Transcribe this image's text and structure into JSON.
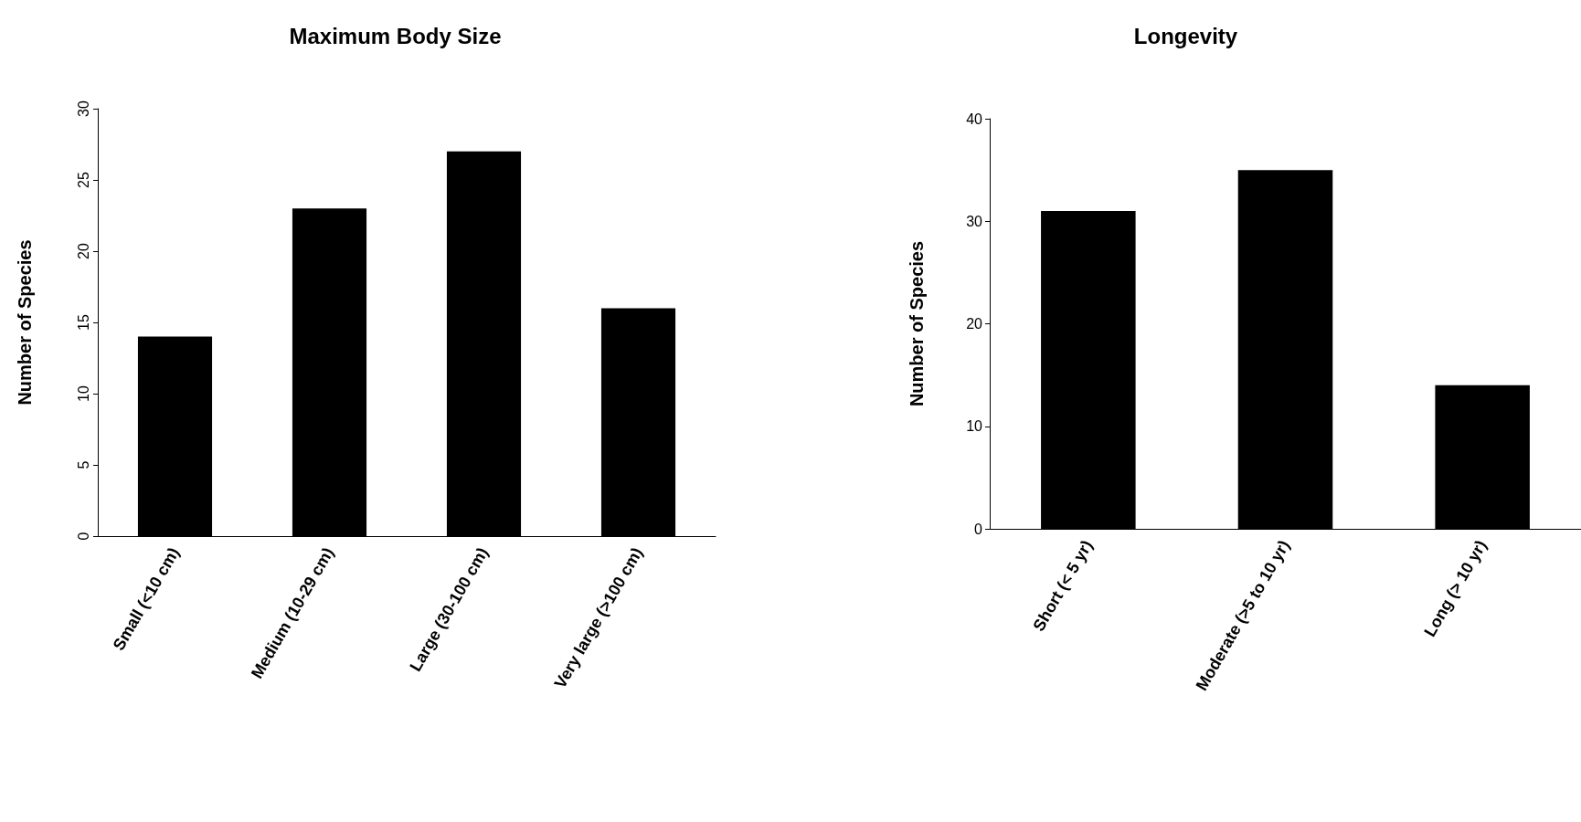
{
  "chart_data": [
    {
      "type": "bar",
      "title": "Maximum Body Size",
      "ylabel": "Number of Species",
      "categories": [
        "Small (<10 cm)",
        "Medium (10-29 cm)",
        "Large (30-100 cm)",
        "Very large (>100 cm)"
      ],
      "values": [
        14,
        23,
        27,
        16
      ],
      "color": "#000000",
      "ylim": [
        0,
        30
      ],
      "yticks": [
        0,
        5,
        10,
        15,
        20,
        25,
        30
      ]
    },
    {
      "type": "bar",
      "title": "Longevity",
      "ylabel": "Number of Species",
      "categories": [
        "Short (< 5 yr)",
        "Moderate (>5 to 10 yr)",
        "Long (> 10 yr)"
      ],
      "values": [
        31,
        35,
        14
      ],
      "color": "#000000",
      "ylim": [
        0,
        40
      ],
      "yticks": [
        0,
        10,
        20,
        30,
        40
      ]
    }
  ]
}
